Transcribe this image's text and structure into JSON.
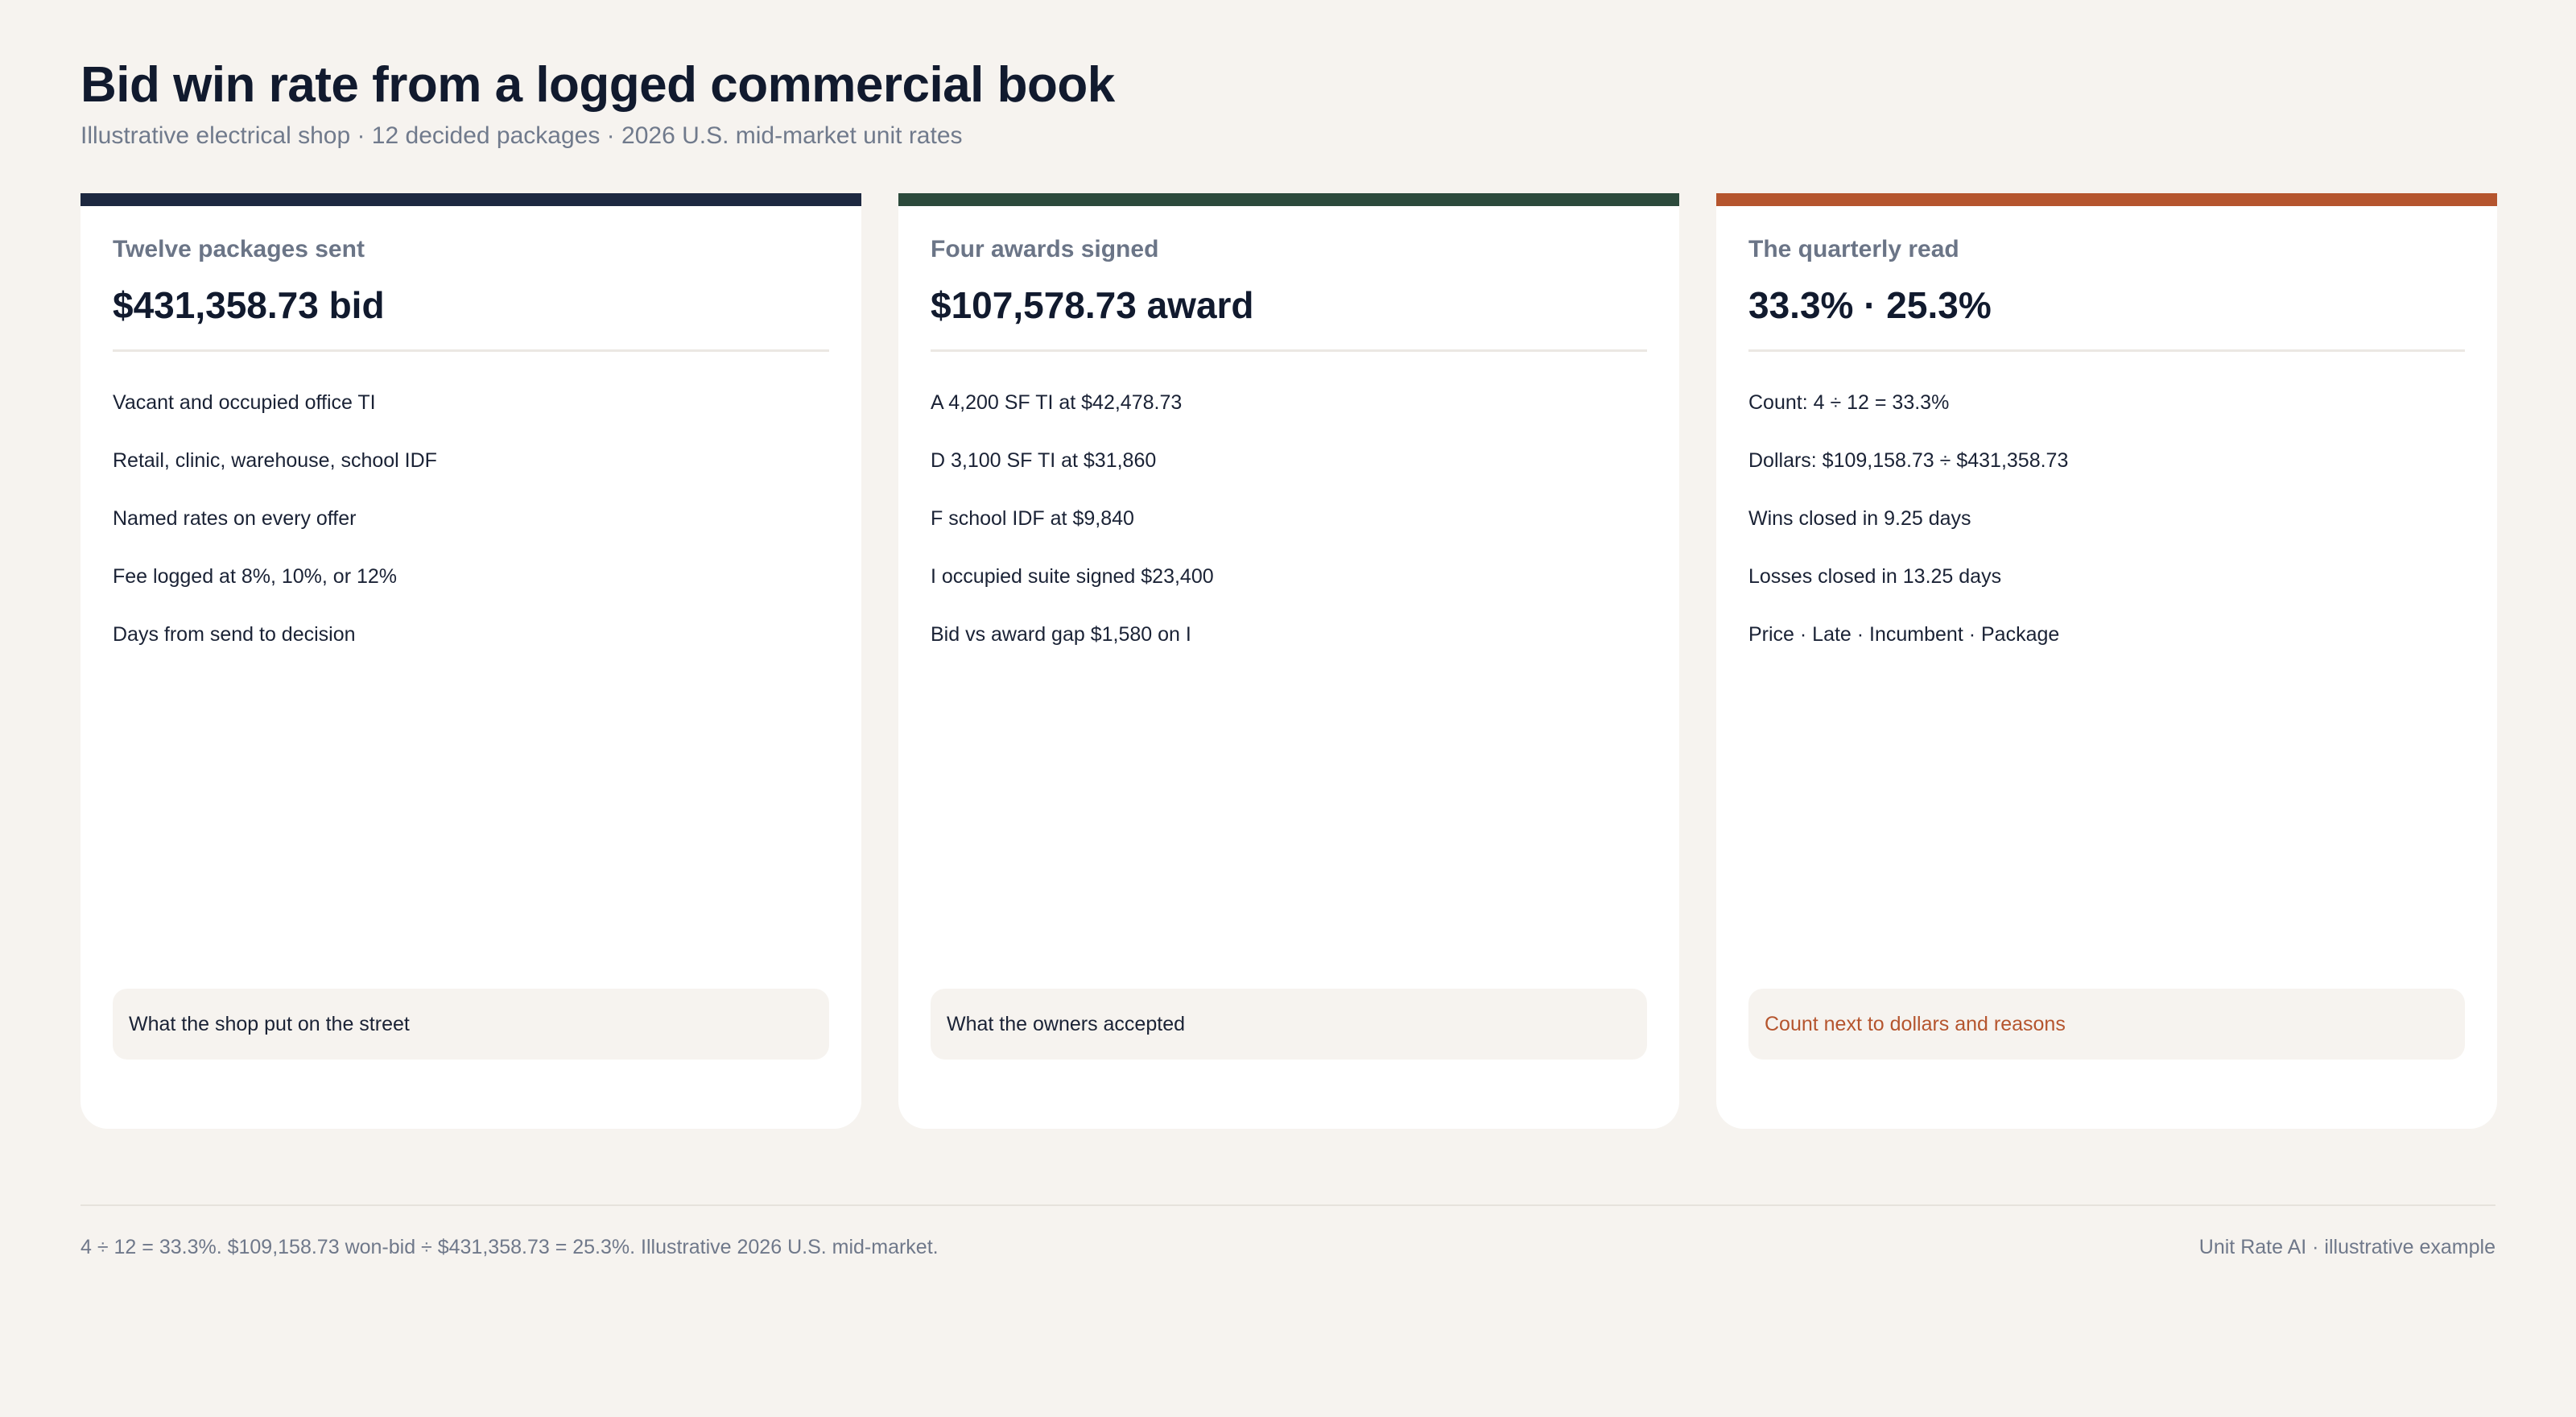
{
  "header": {
    "title": "Bid win rate from a logged commercial book",
    "subtitle": "Illustrative electrical shop · 12 decided packages · 2026 U.S. mid-market unit rates"
  },
  "cards": [
    {
      "label": "Twelve packages sent",
      "headline": "$431,358.73 bid",
      "accent_color": "#1d2840",
      "items": [
        "Vacant and occupied office TI",
        "Retail, clinic, warehouse, school IDF",
        "Named rates on every offer",
        "Fee logged at 8%, 10%, or 12%",
        "Days from send to decision"
      ],
      "footer": "What the shop put on the street",
      "footer_color": "#1a2235"
    },
    {
      "label": "Four awards signed",
      "headline": "$107,578.73 award",
      "accent_color": "#2c4a3c",
      "items": [
        "A 4,200 SF TI at $42,478.73",
        "D 3,100 SF TI at $31,860",
        "F school IDF at $9,840",
        "I occupied suite signed $23,400",
        "Bid vs award gap $1,580 on I"
      ],
      "footer": "What the owners accepted",
      "footer_color": "#1a2235"
    },
    {
      "label": "The quarterly read",
      "headline": "33.3% · 25.3%",
      "accent_color": "#b5552e",
      "items": [
        "Count: 4 ÷ 12 = 33.3%",
        "Dollars: $109,158.73 ÷ $431,358.73",
        "Wins closed in 9.25 days",
        "Losses closed in 13.25 days",
        "Price · Late · Incumbent · Package"
      ],
      "footer": "Count next to dollars and reasons",
      "footer_color": "#b5552e"
    }
  ],
  "footer": {
    "note": "4 ÷ 12 = 33.3%. $109,158.73 won-bid ÷ $431,358.73 = 25.3%. Illustrative 2026 U.S. mid-market.",
    "credit": "Unit Rate AI · illustrative example"
  }
}
